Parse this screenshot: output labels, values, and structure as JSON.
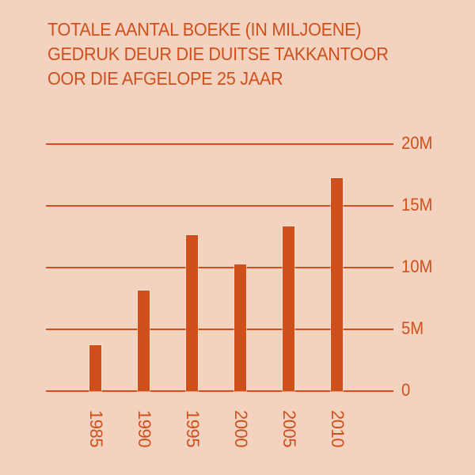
{
  "title": {
    "lines": [
      "TOTALE AANTAL BOEKE (IN MILJOENE)",
      "GEDRUK DEUR DIE DUITSE TAKKANTOOR",
      "OOR DIE AFGELOPE 25 JAAR"
    ]
  },
  "colors": {
    "background": "#f3d2bf",
    "accent": "#d0501c"
  },
  "y_axis": {
    "ticks": [
      "0",
      "5M",
      "10M",
      "15M",
      "20M"
    ]
  },
  "x_axis": {
    "ticks": [
      "1985",
      "1990",
      "1995",
      "2000",
      "2005",
      "2010"
    ]
  },
  "chart_data": {
    "type": "bar",
    "title": "TOTALE AANTAL BOEKE (IN MILJOENE) GEDRUK DEUR DIE DUITSE TAKKANTOOR OOR DIE AFGELOPE 25 JAAR",
    "categories": [
      "1985",
      "1990",
      "1995",
      "2000",
      "2005",
      "2010"
    ],
    "values": [
      3.7,
      8.1,
      12.6,
      10.2,
      13.3,
      17.2
    ],
    "unit": "million books",
    "xlabel": "",
    "ylabel": "",
    "ylim": [
      0,
      20
    ],
    "yticks": [
      0,
      5,
      10,
      15,
      20
    ],
    "ytick_labels": [
      "0",
      "5M",
      "10M",
      "15M",
      "20M"
    ],
    "y_axis_position": "right",
    "x_tick_rotation": 90,
    "grid": true,
    "legend": null
  }
}
